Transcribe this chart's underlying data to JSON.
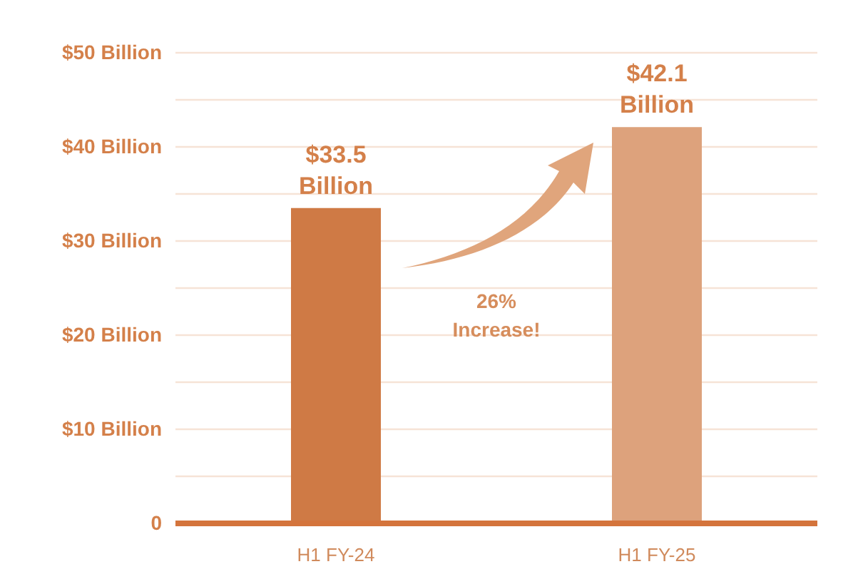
{
  "chart_data": {
    "type": "bar",
    "categories": [
      "H1 FY-24",
      "H1 FY-25"
    ],
    "values": [
      33.5,
      42.1
    ],
    "colors": [
      "#cf7a45",
      "#dda27c"
    ],
    "value_labels": [
      "$33.5 Billion",
      "$42.1 Billion"
    ],
    "ylim": [
      0,
      50
    ],
    "yticks": [
      0,
      {
        "value": 5,
        "label": null
      },
      {
        "value": 10,
        "label": "$10 Billion"
      },
      {
        "value": 15,
        "label": null
      },
      {
        "value": 20,
        "label": "$20 Billion"
      },
      {
        "value": 25,
        "label": null
      },
      {
        "value": 30,
        "label": "$30 Billion"
      },
      {
        "value": 35,
        "label": null
      },
      {
        "value": 40,
        "label": "$40 Billion"
      },
      {
        "value": 45,
        "label": null
      },
      {
        "value": 50,
        "label": "$50 Billion"
      }
    ],
    "grid": true,
    "legend": false,
    "annotations": [
      "26% Increase!"
    ]
  }
}
